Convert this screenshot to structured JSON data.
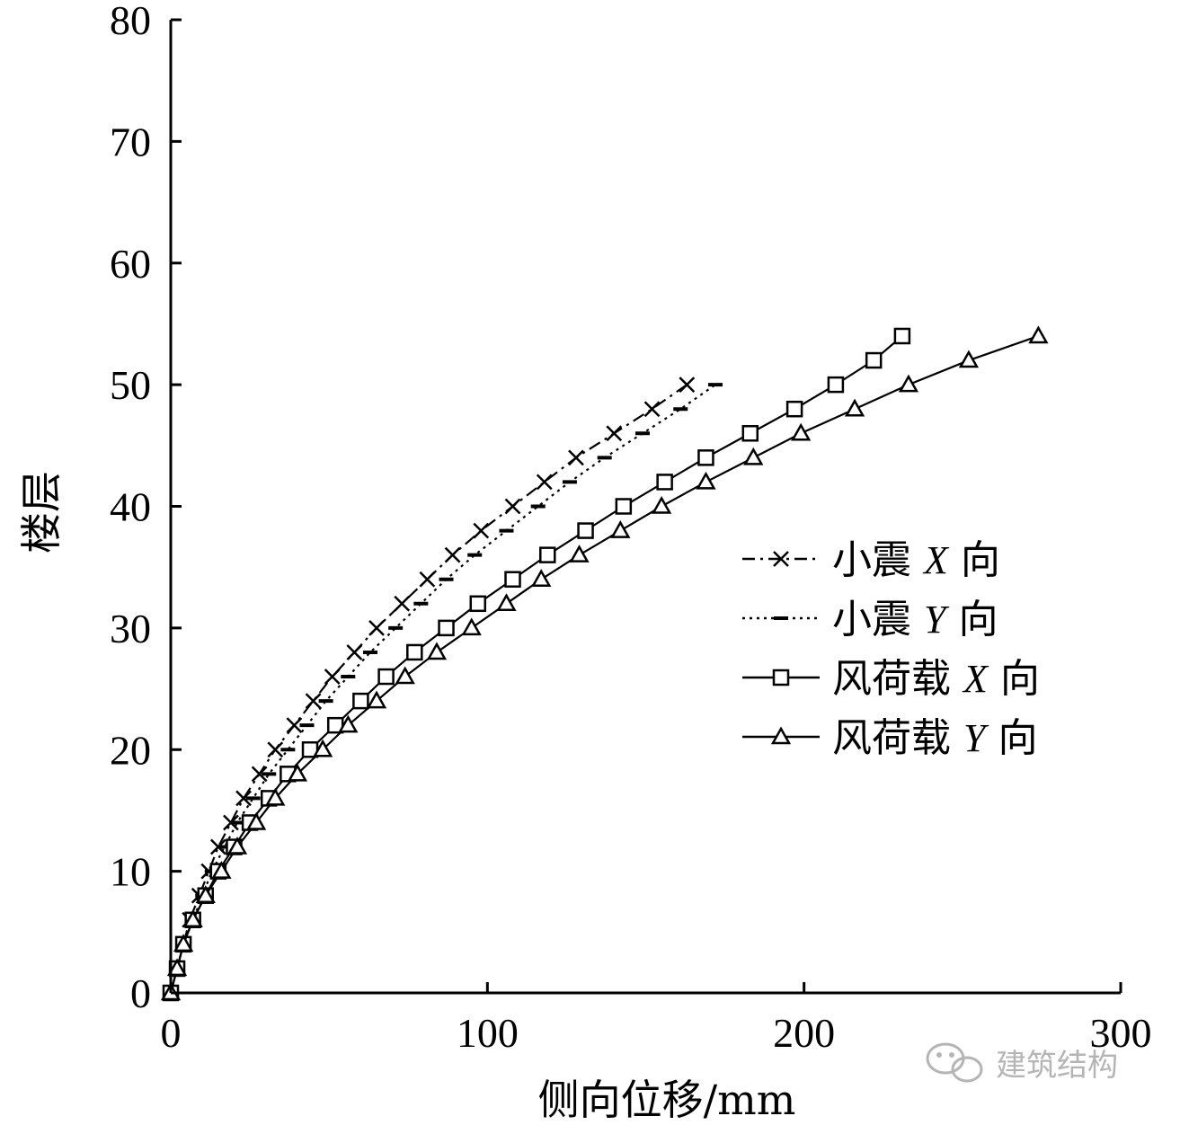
{
  "chart_data": {
    "type": "line",
    "xlabel": "侧向位移/mm",
    "ylabel": "楼层",
    "xlim": [
      0,
      300
    ],
    "ylim": [
      0,
      80
    ],
    "xticks": [
      0,
      100,
      200,
      300
    ],
    "yticks": [
      0,
      10,
      20,
      30,
      40,
      50,
      60,
      70,
      80
    ],
    "grid": false,
    "legend_position": "right",
    "series": [
      {
        "name": "小震 X 向",
        "legend_prefix": "小震",
        "legend_axis": "X",
        "legend_suffix": "向",
        "marker": "x",
        "line": "dash-dot",
        "x": [
          0,
          2,
          4,
          6,
          9,
          12,
          15,
          19,
          23,
          28,
          33,
          39,
          45,
          51,
          58,
          65,
          73,
          81,
          89,
          98,
          108,
          118,
          128,
          140,
          152,
          163
        ],
        "y": [
          0,
          2,
          4,
          6,
          8,
          10,
          12,
          14,
          16,
          18,
          20,
          22,
          24,
          26,
          28,
          30,
          32,
          34,
          36,
          38,
          40,
          42,
          44,
          46,
          48,
          50
        ]
      },
      {
        "name": "小震 Y 向",
        "legend_prefix": "小震",
        "legend_axis": "Y",
        "legend_suffix": "向",
        "marker": "dash",
        "line": "dotted",
        "x": [
          0,
          2,
          4,
          7,
          10,
          13,
          17,
          21,
          26,
          31,
          37,
          43,
          49,
          56,
          63,
          71,
          79,
          87,
          96,
          106,
          116,
          126,
          137,
          149,
          161,
          172
        ],
        "y": [
          0,
          2,
          4,
          6,
          8,
          10,
          12,
          14,
          16,
          18,
          20,
          22,
          24,
          26,
          28,
          30,
          32,
          34,
          36,
          38,
          40,
          42,
          44,
          46,
          48,
          50
        ]
      },
      {
        "name": "风荷载 X 向",
        "legend_prefix": "风荷载",
        "legend_axis": "X",
        "legend_suffix": "向",
        "marker": "square",
        "line": "solid",
        "x": [
          0,
          2,
          4,
          7,
          11,
          15,
          20,
          25,
          31,
          37,
          44,
          52,
          60,
          68,
          77,
          87,
          97,
          108,
          119,
          131,
          143,
          156,
          169,
          183,
          197,
          210,
          222,
          231
        ],
        "y": [
          0,
          2,
          4,
          6,
          8,
          10,
          12,
          14,
          16,
          18,
          20,
          22,
          24,
          26,
          28,
          30,
          32,
          34,
          36,
          38,
          40,
          42,
          44,
          46,
          48,
          50,
          52,
          54
        ]
      },
      {
        "name": "风荷载 Y 向",
        "legend_prefix": "风荷载",
        "legend_axis": "Y",
        "legend_suffix": "向",
        "marker": "triangle",
        "line": "solid",
        "x": [
          0,
          2,
          4,
          7,
          11,
          16,
          21,
          27,
          33,
          40,
          48,
          56,
          65,
          74,
          84,
          95,
          106,
          117,
          129,
          142,
          155,
          169,
          184,
          199,
          216,
          233,
          252,
          274
        ],
        "y": [
          0,
          2,
          4,
          6,
          8,
          10,
          12,
          14,
          16,
          18,
          20,
          22,
          24,
          26,
          28,
          30,
          32,
          34,
          36,
          38,
          40,
          42,
          44,
          46,
          48,
          50,
          52,
          54
        ]
      }
    ]
  },
  "watermark": {
    "icon": "wechat-icon",
    "text": "建筑结构"
  },
  "colors": {
    "line": "#000000",
    "watermark": "#b5b5b5"
  }
}
